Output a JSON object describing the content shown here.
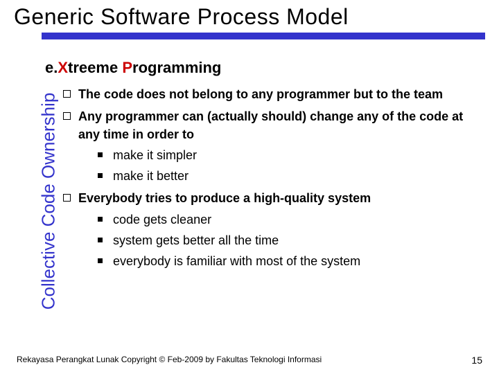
{
  "title": "Generic Software Process Model",
  "vertical_label": "Collective Code Ownership",
  "subtitle": {
    "pre": "e.",
    "x": "X",
    "mid": "treeme ",
    "p": "P",
    "post": "rogramming"
  },
  "bullets": {
    "b1": "The code does not belong to any programmer but to the team",
    "b2": "Any programmer can (actually should) change any of the code at any time in order to",
    "b2_1": "make it simpler",
    "b2_2": "make it better",
    "b3": "Everybody tries to produce a high-quality system",
    "b3_1": "code gets cleaner",
    "b3_2": "system gets better all the time",
    "b3_3": "everybody is familiar with most of the system"
  },
  "footer": "Rekayasa Perangkat Lunak Copyright © Feb-2009 by Fakultas Teknologi Informasi",
  "page": "15",
  "colors": {
    "accent": "#3333cc",
    "highlight": "#cc0000",
    "text": "#000000",
    "bg": "#ffffff"
  }
}
